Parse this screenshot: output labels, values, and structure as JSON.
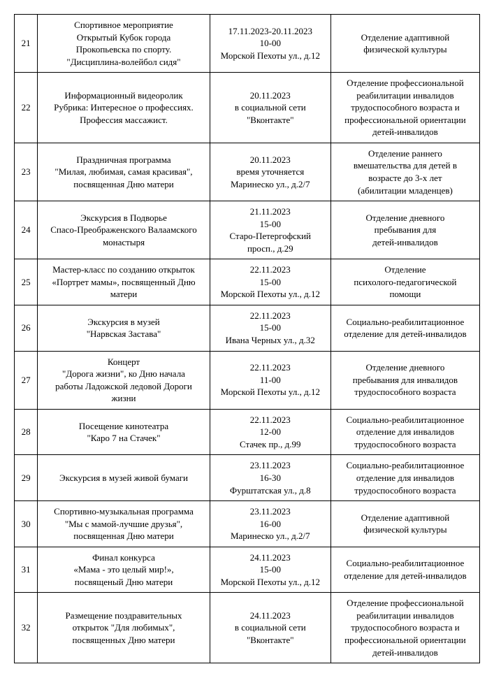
{
  "table": {
    "font_family": "Times New Roman",
    "font_size_pt": 13,
    "border_color": "#000000",
    "text_color": "#000000",
    "background_color": "#ffffff",
    "columns": [
      {
        "key": "num",
        "width_pct": 5
      },
      {
        "key": "event",
        "width_pct": 37
      },
      {
        "key": "when",
        "width_pct": 26
      },
      {
        "key": "dept",
        "width_pct": 32
      }
    ],
    "rows": [
      {
        "num": "21",
        "event": "Спортивное мероприятие\nОткрытый Кубок города\nПрокопьевска по спорту.\n\"Дисциплина-волейбол сидя\"",
        "when": "17.11.2023-20.11.2023\n10-00\nМорской Пехоты ул., д.12",
        "dept": "Отделение адаптивной\nфизической культуры"
      },
      {
        "num": "22",
        "event": "Информационный видеоролик\nРубрика: Интересное о профессиях.\nПрофессия массажист.",
        "when": "20.11.2023\nв социальной сети\n\"Вконтакте\"",
        "dept": "Отделение профессиональной\nреабилитации инвалидов\nтрудоспособного возраста и\nпрофессиональной ориентации\nдетей-инвалидов"
      },
      {
        "num": "23",
        "event": "Праздничная программа\n\"Милая, любимая, самая красивая\",\nпосвященная Дню матери",
        "when": "20.11.2023\nвремя уточняется\nМаринеско ул., д.2/7",
        "dept": "Отделение раннего\nвмешательства для детей в\nвозрасте до 3-х лет\n(абилитации младенцев)"
      },
      {
        "num": "24",
        "event": "Экскурсия в Подворье\nСпасо-Преображенского Валаамского\nмонастыря",
        "when": "21.11.2023\n15-00\nСтаро-Петергофский\nпросп., д.29",
        "dept": "Отделение дневного\nпребывания для\nдетей-инвалидов"
      },
      {
        "num": "25",
        "event": "Мастер-класс по созданию открыток\n«Портрет мамы», посвященный Дню\nматери",
        "when": "22.11.2023\n15-00\nМорской Пехоты ул., д.12",
        "dept": "Отделение\nпсихолого-педагогической\nпомощи"
      },
      {
        "num": "26",
        "event": "Экскурсия в музей\n\"Нарвская Застава\"",
        "when": "22.11.2023\n15-00\nИвана Черных ул., д.32",
        "dept": "Социально-реабилитационное\nотделение для детей-инвалидов"
      },
      {
        "num": "27",
        "event": "Концерт\n\"Дорога жизни\", ко Дню начала\nработы Ладожской ледовой Дороги\nжизни",
        "when": "22.11.2023\n11-00\nМорской Пехоты ул., д.12",
        "dept": "Отделение дневного\nпребывания для инвалидов\nтрудоспособного возраста"
      },
      {
        "num": "28",
        "event": "Посещение кинотеатра\n\"Каро 7 на Стачек\"",
        "when": "22.11.2023\n12-00\nСтачек пр., д.99",
        "dept": "Социально-реабилитационное\nотделение для инвалидов\nтрудоспособного возраста"
      },
      {
        "num": "29",
        "event": "Экскурсия в музей живой бумаги",
        "when": "23.11.2023\n16-30\nФурштатская ул., д.8",
        "dept": "Социально-реабилитационное\nотделение для инвалидов\nтрудоспособного возраста"
      },
      {
        "num": "30",
        "event": "Спортивно-музыкальная программа\n\"Мы с мамой-лучшие друзья\",\nпосвященная Дню матери",
        "when": "23.11.2023\n16-00\nМаринеско ул., д.2/7",
        "dept": "Отделение адаптивной\nфизической культуры"
      },
      {
        "num": "31",
        "event": "Финал конкурса\n«Мама - это целый мир!»,\nпосвященый Дню матери",
        "when": "24.11.2023\n15-00\nМорской Пехоты ул., д.12",
        "dept": "Социально-реабилитационное\nотделение для детей-инвалидов"
      },
      {
        "num": "32",
        "event": "Размещение поздравительных\nоткрыток \"Для любимых\",\nпосвященных Дню матери",
        "when": "24.11.2023\nв социальной сети\n\"Вконтакте\"",
        "dept": "Отделение профессиональной\nреабилитации инвалидов\nтрудоспособного возраста и\nпрофессиональной ориентации\nдетей-инвалидов"
      }
    ]
  }
}
